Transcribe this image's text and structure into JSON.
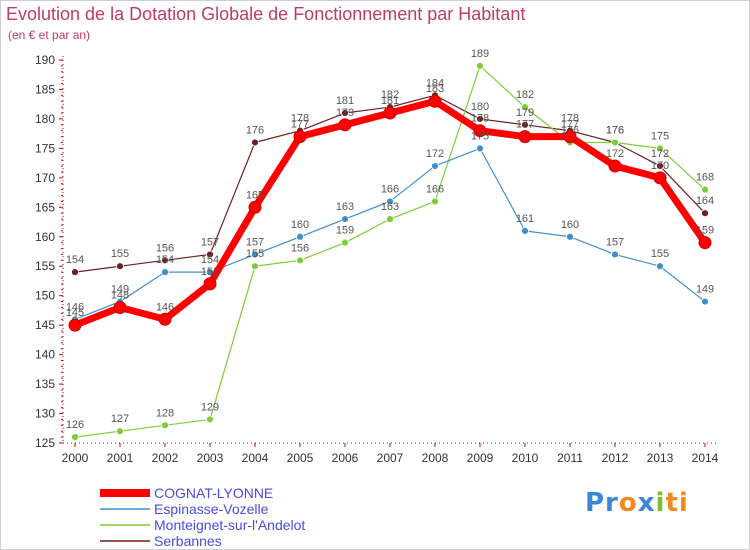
{
  "chart_data": {
    "type": "line",
    "title": "Evolution de la Dotation Globale de Fonctionnement par Habitant",
    "subtitle": "(en € et par an)",
    "categories": [
      "2000",
      "2001",
      "2002",
      "2003",
      "2004",
      "2005",
      "2006",
      "2007",
      "2008",
      "2009",
      "2010",
      "2011",
      "2012",
      "2013",
      "2014"
    ],
    "ylim": [
      125,
      190
    ],
    "yticks": [
      125,
      130,
      135,
      140,
      145,
      150,
      155,
      160,
      165,
      170,
      175,
      180,
      185,
      190
    ],
    "grid": false,
    "legend_position": "bottom-left",
    "series": [
      {
        "name": "Serbannes",
        "color": "#6e1f22",
        "values": [
          154,
          155,
          156,
          157,
          176,
          178,
          181,
          182,
          184,
          180,
          179,
          178,
          176,
          172,
          164
        ]
      },
      {
        "name": "Monteignet-sur-l'Andelot",
        "color": "#7fcc3a",
        "values": [
          126,
          127,
          128,
          129,
          155,
          156,
          159,
          163,
          166,
          189,
          182,
          176,
          176,
          175,
          168
        ]
      },
      {
        "name": "Espinasse-Vozelle",
        "color": "#3f8fcf",
        "values": [
          146,
          149,
          154,
          154,
          157,
          160,
          163,
          166,
          172,
          175,
          161,
          160,
          157,
          155,
          149
        ]
      },
      {
        "name": "COGNAT-LYONNE",
        "color": "#ff0000",
        "values": [
          145,
          148,
          146,
          152,
          165,
          177,
          179,
          181,
          183,
          178,
          177,
          177,
          172,
          170,
          159
        ]
      }
    ],
    "legend": [
      "COGNAT-LYONNE",
      "Espinasse-Vozelle",
      "Monteignet-sur-l'Andelot",
      "Serbannes"
    ]
  },
  "brand": {
    "part1": "Pr",
    "part2": "o",
    "part3": "x",
    "part4": "i",
    "part5": "ti"
  }
}
